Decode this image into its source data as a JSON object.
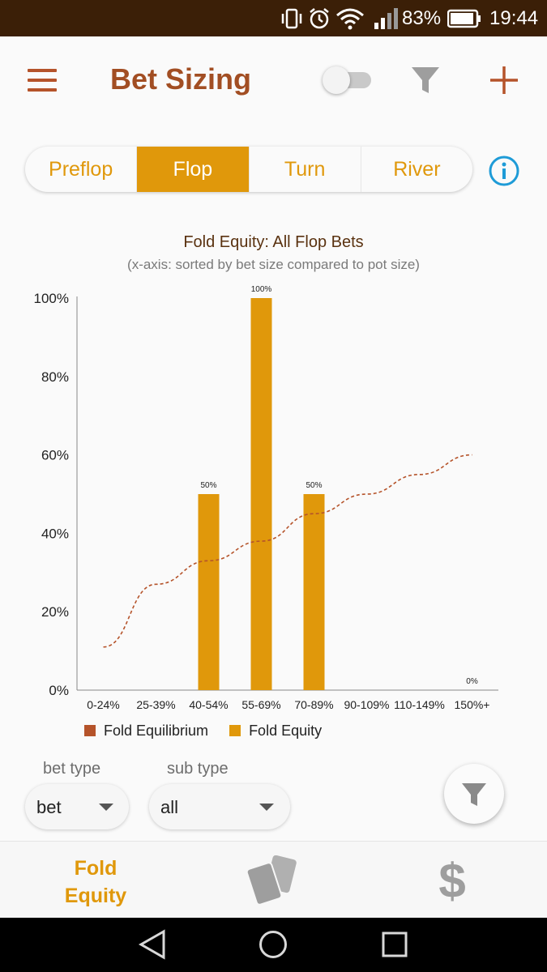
{
  "status_bar": {
    "battery_percent": "83%",
    "time": "19:44",
    "icons": [
      "vibrate-icon",
      "alarm-icon",
      "wifi-icon",
      "signal-icon",
      "battery-icon"
    ]
  },
  "app_bar": {
    "title": "Bet Sizing",
    "icons": [
      "menu-icon",
      "toggle-switch",
      "filter-icon",
      "plus-icon"
    ]
  },
  "tabs": [
    {
      "label": "Preflop",
      "active": false
    },
    {
      "label": "Flop",
      "active": true
    },
    {
      "label": "Turn",
      "active": false
    },
    {
      "label": "River",
      "active": false
    }
  ],
  "info_icon": "info-icon",
  "chart_data": {
    "type": "bar",
    "title": "Fold Equity: All Flop Bets",
    "subtitle": "(x-axis: sorted by bet size compared to pot size)",
    "categories": [
      "0-24%",
      "25-39%",
      "40-54%",
      "55-69%",
      "70-89%",
      "90-109%",
      "110-149%",
      "150%+"
    ],
    "series": [
      {
        "name": "Fold Equity",
        "type": "bar",
        "color": "#e0980b",
        "values": [
          null,
          null,
          50,
          100,
          50,
          null,
          null,
          0
        ],
        "labels": [
          "",
          "",
          "50%",
          "100%",
          "50%",
          "",
          "",
          "0%"
        ]
      },
      {
        "name": "Fold Equilibrium",
        "type": "line",
        "style": "dashed",
        "color": "#b5532a",
        "values": [
          11,
          27,
          33,
          38,
          45,
          50,
          55,
          60
        ]
      }
    ],
    "y_ticks": [
      "0%",
      "20%",
      "40%",
      "60%",
      "80%",
      "100%"
    ],
    "ylim": [
      0,
      100
    ],
    "grid": false,
    "legend": "bottom"
  },
  "legend": [
    {
      "label": "Fold Equilibrium",
      "color": "#b5532a"
    },
    {
      "label": "Fold Equity",
      "color": "#e0980b"
    }
  ],
  "filters": {
    "bet_type": {
      "label": "bet type",
      "value": "bet"
    },
    "sub_type": {
      "label": "sub type",
      "value": "all"
    }
  },
  "bottom_nav": {
    "fold_equity_line1": "Fold",
    "fold_equity_line2": "Equity",
    "dollar": "$"
  },
  "colors": {
    "accent": "#e0980b",
    "brand": "#a24e23",
    "status_bar": "#3b1f07"
  }
}
